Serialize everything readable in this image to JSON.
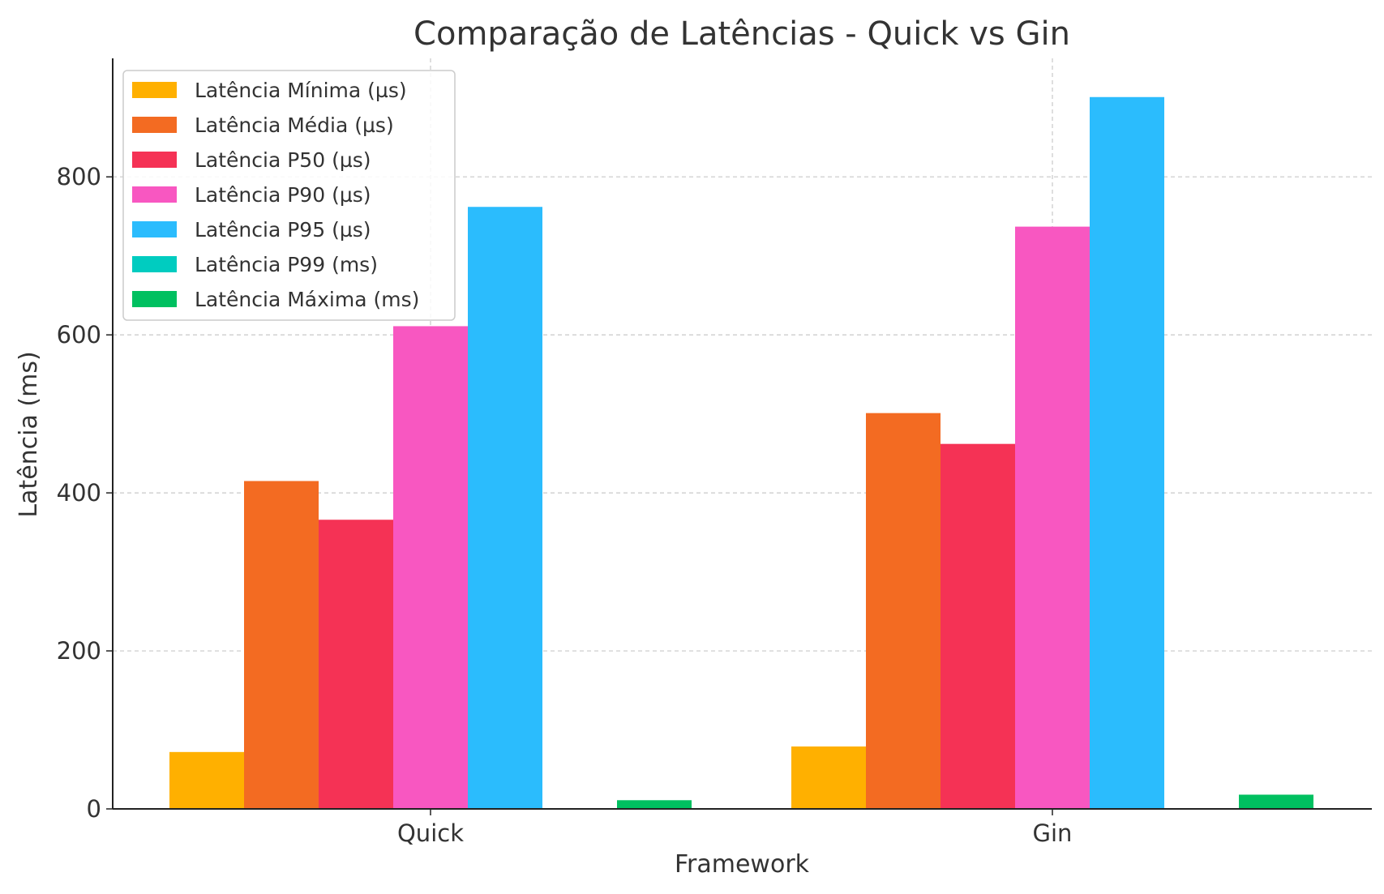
{
  "chart_data": {
    "type": "bar",
    "title": "Comparação de Latências - Quick vs Gin",
    "xlabel": "Framework",
    "ylabel": "Latência (ms)",
    "categories": [
      "Quick",
      "Gin"
    ],
    "ylim": [
      0,
      950
    ],
    "yticks": [
      0,
      200,
      400,
      600,
      800
    ],
    "grid": true,
    "legend_position": "top-left",
    "series": [
      {
        "name": "Latência Mínima (µs)",
        "color": "#FFB000",
        "values": [
          72,
          79
        ]
      },
      {
        "name": "Latência Média (µs)",
        "color": "#F36B22",
        "values": [
          415,
          501
        ]
      },
      {
        "name": "Latência P50 (µs)",
        "color": "#F53255",
        "values": [
          366,
          462
        ]
      },
      {
        "name": "Latência P90 (µs)",
        "color": "#F857C1",
        "values": [
          611,
          737
        ]
      },
      {
        "name": "Latência P95 (µs)",
        "color": "#2BBCFD",
        "values": [
          762,
          901
        ]
      },
      {
        "name": "Latência P99 (ms)",
        "color": "#00CCC0",
        "values": [
          0.9,
          0.9
        ]
      },
      {
        "name": "Latência Máxima (ms)",
        "color": "#00C060",
        "values": [
          11,
          18
        ]
      }
    ]
  }
}
